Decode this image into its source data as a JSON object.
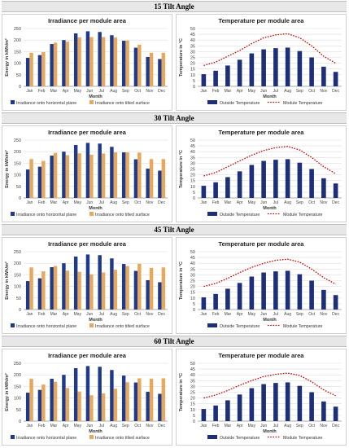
{
  "colors": {
    "horizontal": "#1f3a8c",
    "tilted": "#e8a85b",
    "outside": "#1e2f7a",
    "module": "#cc0000",
    "banner_bg": "#e7e7e7",
    "grid": "#dedede"
  },
  "sections": [
    {
      "banner": "15 Tilt Angle",
      "irradiance": {
        "type": "bar",
        "title": "Irradiance per module area",
        "xlabel": "Month",
        "ylabel": "Energy in kWh/m²",
        "ylim": [
          0,
          250
        ],
        "yticks": [
          "0",
          "50",
          "100",
          "150",
          "200",
          "250"
        ],
        "yticks_values": [
          0,
          50,
          100,
          150,
          200,
          250
        ],
        "categories": [
          "Jan",
          "Feb",
          "Mar",
          "Apr",
          "May",
          "Jun",
          "Jul",
          "Aug",
          "Sep",
          "Oct",
          "Nov",
          "Dec"
        ],
        "series": [
          {
            "name": "Irradiance onto horizontal plane",
            "values": [
              123,
              135,
              183,
              200,
              229,
              238,
              235,
              221,
              197,
              167,
              127,
              118
            ]
          },
          {
            "name": "Irradiance onto tilted surface",
            "values": [
              145,
              148,
              189,
              193,
              212,
              213,
              213,
              211,
              198,
              180,
              145,
              145
            ]
          }
        ]
      },
      "temperature": {
        "type": "bar",
        "title": "Temperature per module area",
        "xlabel": "Month",
        "ylabel": "Temperature in °C",
        "ylim": [
          0,
          50
        ],
        "yticks": [
          "0",
          "5",
          "10",
          "15",
          "20",
          "25",
          "30",
          "35",
          "40",
          "45",
          "50"
        ],
        "yticks_values": [
          0,
          5,
          10,
          15,
          20,
          25,
          30,
          35,
          40,
          45,
          50
        ],
        "categories": [
          "Jan",
          "Feb",
          "Mar",
          "Apr",
          "May",
          "Jun",
          "Jul",
          "Aug",
          "Sep",
          "Oct",
          "Nov",
          "Dec"
        ],
        "series": [
          {
            "name": "Outside Temperature",
            "values": [
              10.5,
              13.5,
              18,
              23,
              28.5,
              32,
              33,
              33.5,
              30.5,
              25,
              17,
              12.5
            ]
          },
          {
            "name": "Module Temperature",
            "values": [
              18,
              21,
              26,
              31,
              37,
              42,
              44.5,
              45.5,
              42,
              35,
              26,
              20
            ]
          }
        ]
      }
    },
    {
      "banner": "30 Tilt Angle",
      "irradiance": {
        "type": "bar",
        "title": "Irradiance per module area",
        "xlabel": "Month",
        "ylabel": "Energy in kWh/m²",
        "ylim": [
          0,
          250
        ],
        "yticks": [
          "0",
          "50",
          "100",
          "150",
          "200",
          "250"
        ],
        "yticks_values": [
          0,
          50,
          100,
          150,
          200,
          250
        ],
        "categories": [
          "Jan",
          "Feb",
          "Mar",
          "Apr",
          "May",
          "Jun",
          "Jul",
          "Aug",
          "Sep",
          "Oct",
          "Nov",
          "Dec"
        ],
        "series": [
          {
            "name": "Irradiance onto horizontal plane",
            "values": [
              123,
              135,
              183,
              200,
              229,
              238,
              235,
              221,
              197,
              167,
              127,
              118
            ]
          },
          {
            "name": "Irradiance onto tilted surface",
            "values": [
              168,
              160,
              195,
              185,
              193,
              187,
              192,
              197,
              197,
              196,
              168,
              168
            ]
          }
        ]
      },
      "temperature": {
        "type": "bar",
        "title": "Temperature per module area",
        "xlabel": "Month",
        "ylabel": "Temperature in °C",
        "ylim": [
          0,
          50
        ],
        "yticks": [
          "0",
          "5",
          "10",
          "15",
          "20",
          "25",
          "30",
          "35",
          "40",
          "45",
          "50"
        ],
        "yticks_values": [
          0,
          5,
          10,
          15,
          20,
          25,
          30,
          35,
          40,
          45,
          50
        ],
        "categories": [
          "Jan",
          "Feb",
          "Mar",
          "Apr",
          "May",
          "Jun",
          "Jul",
          "Aug",
          "Sep",
          "Oct",
          "Nov",
          "Dec"
        ],
        "series": [
          {
            "name": "Outside Temperature",
            "values": [
              10.5,
              13.5,
              18,
              23,
              28.5,
              32,
              33,
              33.5,
              30.5,
              25,
              17,
              12.5
            ]
          },
          {
            "name": "Module Temperature",
            "values": [
              19,
              22,
              27,
              32,
              37,
              41,
              43.5,
              44.5,
              41.5,
              35,
              27,
              21
            ]
          }
        ]
      }
    },
    {
      "banner": "45 Tilt Angle",
      "irradiance": {
        "type": "bar",
        "title": "Irradiance per module area",
        "xlabel": "Month",
        "ylabel": "Energy in kWh/m²",
        "ylim": [
          0,
          250
        ],
        "yticks": [
          "0",
          "50",
          "100",
          "150",
          "200",
          "250"
        ],
        "yticks_values": [
          0,
          50,
          100,
          150,
          200,
          250
        ],
        "categories": [
          "Jan",
          "Feb",
          "Mar",
          "Apr",
          "May",
          "Jun",
          "Jul",
          "Aug",
          "Sep",
          "Oct",
          "Nov",
          "Dec"
        ],
        "series": [
          {
            "name": "Irradiance onto horizontal plane",
            "values": [
              123,
              135,
              183,
              200,
              229,
              238,
              235,
              221,
              197,
              167,
              127,
              118
            ]
          },
          {
            "name": "Irradiance onto tilted surface",
            "values": [
              182,
              165,
              188,
              168,
              163,
              152,
              160,
              172,
              188,
              198,
              180,
              182
            ]
          }
        ]
      },
      "temperature": {
        "type": "bar",
        "title": "Temperature per module area",
        "xlabel": "Month",
        "ylabel": "Temperature in °C",
        "ylim": [
          0,
          50
        ],
        "yticks": [
          "0",
          "5",
          "10",
          "15",
          "20",
          "25",
          "30",
          "35",
          "40",
          "45",
          "50"
        ],
        "yticks_values": [
          0,
          5,
          10,
          15,
          20,
          25,
          30,
          35,
          40,
          45,
          50
        ],
        "categories": [
          "Jan",
          "Feb",
          "Mar",
          "Apr",
          "May",
          "Jun",
          "Jul",
          "Aug",
          "Sep",
          "Oct",
          "Nov",
          "Dec"
        ],
        "series": [
          {
            "name": "Outside Temperature",
            "values": [
              10.5,
              13.5,
              18,
              23,
              28.5,
              32,
              33,
              33.5,
              30.5,
              25,
              17,
              12.5
            ]
          },
          {
            "name": "Module Temperature",
            "values": [
              20,
              22.5,
              27,
              32,
              36.5,
              40,
              42.5,
              43.5,
              41,
              35,
              27.5,
              22
            ]
          }
        ]
      }
    },
    {
      "banner": "60 Tilt Angle",
      "irradiance": {
        "type": "bar",
        "title": "Irradiance per module area",
        "xlabel": "Month",
        "ylabel": "Energy in kWh/m²",
        "ylim": [
          0,
          250
        ],
        "yticks": [
          "0",
          "50",
          "100",
          "150",
          "200",
          "250"
        ],
        "yticks_values": [
          0,
          50,
          100,
          150,
          200,
          250
        ],
        "categories": [
          "Jan",
          "Feb",
          "Mar",
          "Apr",
          "May",
          "Jun",
          "Jul",
          "Aug",
          "Sep",
          "Oct",
          "Nov",
          "Dec"
        ],
        "series": [
          {
            "name": "Irradiance onto horizontal plane",
            "values": [
              123,
              135,
              183,
              200,
              229,
              238,
              235,
              221,
              197,
              167,
              127,
              118
            ]
          },
          {
            "name": "Irradiance onto tilted surface",
            "values": [
              183,
              158,
              170,
              143,
              128,
              112,
              120,
              140,
              168,
              185,
              183,
              185
            ]
          }
        ]
      },
      "temperature": {
        "type": "bar",
        "title": "Temperature per module area",
        "xlabel": "Month",
        "ylabel": "Temperature in °C",
        "ylim": [
          0,
          50
        ],
        "yticks": [
          "0",
          "5",
          "10",
          "15",
          "20",
          "25",
          "30",
          "35",
          "40",
          "45",
          "50"
        ],
        "yticks_values": [
          0,
          5,
          10,
          15,
          20,
          25,
          30,
          35,
          40,
          45,
          50
        ],
        "categories": [
          "Jan",
          "Feb",
          "Mar",
          "Apr",
          "May",
          "Jun",
          "Jul",
          "Aug",
          "Sep",
          "Oct",
          "Nov",
          "Dec"
        ],
        "series": [
          {
            "name": "Outside Temperature",
            "values": [
              10.5,
              13.5,
              18,
              23,
              28.5,
              32,
              33,
              33.5,
              30.5,
              25,
              17,
              12.5
            ]
          },
          {
            "name": "Module Temperature",
            "values": [
              20,
              22.5,
              26.5,
              31,
              35,
              38.5,
              40.5,
              41.5,
              39.5,
              34,
              27,
              22
            ]
          }
        ]
      }
    }
  ]
}
